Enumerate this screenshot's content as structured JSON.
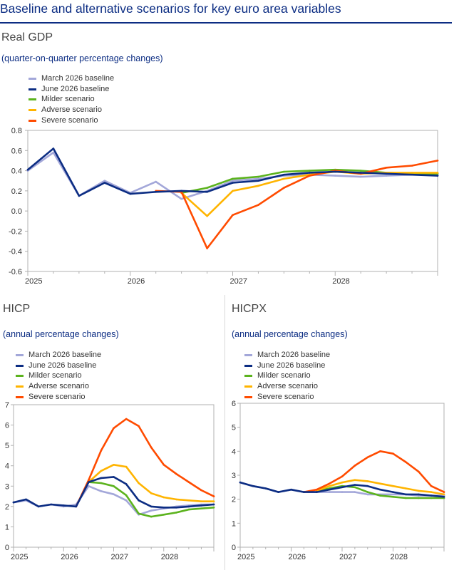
{
  "title": "Baseline and alternative scenarios for key euro area variables",
  "colors": {
    "march_baseline": "#a3a7d9",
    "june_baseline": "#0c2d83",
    "milder": "#5cb31e",
    "adverse": "#ffb400",
    "severe": "#ff4b00",
    "title_blue": "#0c2d83",
    "axis": "#b0b0b0"
  },
  "chart_data": [
    {
      "type": "line",
      "panel_title": "Real GDP",
      "subtitle": "(quarter-on-quarter percentage changes)",
      "legend": [
        "March 2026 baseline",
        "June 2026 baseline",
        "Milder scenario",
        "Adverse scenario",
        "Severe scenario"
      ],
      "legend_placement": "top-left",
      "x_tick_labels": [
        "2025",
        "2026",
        "2027",
        "2028"
      ],
      "x_quarters": 16,
      "xlim": [
        0,
        16
      ],
      "ylim": [
        -0.6,
        0.8
      ],
      "y_ticks": [
        -0.6,
        -0.4,
        -0.2,
        0.0,
        0.2,
        0.4,
        0.6,
        0.8
      ],
      "y_tick_labels": [
        "-0.6",
        "-0.4",
        "-0.2",
        "0.0",
        "0.2",
        "0.4",
        "0.6",
        "0.8"
      ],
      "series": [
        {
          "name": "March 2026 baseline",
          "color_key": "march_baseline",
          "start": 0,
          "values": [
            0.4,
            0.58,
            0.15,
            0.3,
            0.18,
            0.29,
            0.12,
            0.2,
            0.3,
            0.32,
            0.35,
            0.36,
            0.35,
            0.34,
            0.35,
            0.36,
            0.36
          ]
        },
        {
          "name": "June 2026 baseline",
          "color_key": "june_baseline",
          "start": 0,
          "values": [
            0.41,
            0.62,
            0.15,
            0.28,
            0.17,
            0.19,
            0.2,
            0.19,
            0.28,
            0.3,
            0.36,
            0.38,
            0.39,
            0.38,
            0.37,
            0.36,
            0.35
          ]
        },
        {
          "name": "Milder scenario",
          "color_key": "milder",
          "start": 6,
          "values": [
            0.18,
            0.23,
            0.32,
            0.34,
            0.39,
            0.4,
            0.41,
            0.4,
            0.38,
            0.37,
            0.37
          ]
        },
        {
          "name": "Adverse scenario",
          "color_key": "adverse",
          "start": 6,
          "values": [
            0.18,
            -0.05,
            0.2,
            0.25,
            0.32,
            0.36,
            0.39,
            0.37,
            0.38,
            0.38,
            0.38
          ]
        },
        {
          "name": "Severe scenario",
          "color_key": "severe",
          "start": 5,
          "values": [
            0.2,
            0.19,
            -0.37,
            -0.04,
            0.06,
            0.23,
            0.35,
            0.4,
            0.37,
            0.43,
            0.45,
            0.5
          ]
        }
      ]
    },
    {
      "type": "line",
      "panel_title": "HICP",
      "subtitle": "(annual percentage changes)",
      "legend": [
        "March 2026 baseline",
        "June 2026 baseline",
        "Milder scenario",
        "Adverse scenario",
        "Severe scenario"
      ],
      "legend_placement": "top-left",
      "x_tick_labels": [
        "2025",
        "2026",
        "2027",
        "2028"
      ],
      "x_quarters": 16,
      "xlim": [
        0,
        16
      ],
      "ylim": [
        0,
        7
      ],
      "y_ticks": [
        0,
        1,
        2,
        3,
        4,
        5,
        6,
        7
      ],
      "y_tick_labels": [
        "0",
        "1",
        "2",
        "3",
        "4",
        "5",
        "6",
        "7"
      ],
      "series": [
        {
          "name": "March 2026 baseline",
          "color_key": "march_baseline",
          "start": 0,
          "values": [
            2.2,
            2.3,
            2.0,
            2.1,
            2.0,
            2.1,
            3.0,
            2.75,
            2.6,
            2.3,
            1.6,
            1.8,
            1.9,
            2.0,
            2.05,
            2.1,
            2.1
          ]
        },
        {
          "name": "June 2026 baseline",
          "color_key": "june_baseline",
          "start": 0,
          "values": [
            2.2,
            2.35,
            2.0,
            2.1,
            2.05,
            2.0,
            3.2,
            3.4,
            3.45,
            3.1,
            2.3,
            2.0,
            1.95,
            1.95,
            2.0,
            2.05,
            2.1
          ]
        },
        {
          "name": "Milder scenario",
          "color_key": "milder",
          "start": 6,
          "values": [
            3.2,
            3.15,
            3.0,
            2.55,
            1.65,
            1.5,
            1.6,
            1.7,
            1.85,
            1.9,
            1.95
          ]
        },
        {
          "name": "Adverse scenario",
          "color_key": "adverse",
          "start": 6,
          "values": [
            3.2,
            3.75,
            4.05,
            3.95,
            3.15,
            2.65,
            2.45,
            2.35,
            2.3,
            2.25,
            2.25
          ]
        },
        {
          "name": "Severe scenario",
          "color_key": "severe",
          "start": 5,
          "values": [
            2.0,
            3.3,
            4.75,
            5.85,
            6.3,
            5.95,
            4.9,
            4.05,
            3.6,
            3.2,
            2.8,
            2.5
          ]
        }
      ]
    },
    {
      "type": "line",
      "panel_title": "HICPX",
      "subtitle": "(annual percentage changes)",
      "legend": [
        "March 2026 baseline",
        "June 2026 baseline",
        "Milder scenario",
        "Adverse scenario",
        "Severe scenario"
      ],
      "legend_placement": "top-left",
      "x_tick_labels": [
        "2025",
        "2026",
        "2027",
        "2028"
      ],
      "x_quarters": 16,
      "xlim": [
        0,
        16
      ],
      "ylim": [
        0,
        6
      ],
      "y_ticks": [
        0,
        1,
        2,
        3,
        4,
        5,
        6
      ],
      "y_tick_labels": [
        "0",
        "1",
        "2",
        "3",
        "4",
        "5",
        "6"
      ],
      "series": [
        {
          "name": "March 2026 baseline",
          "color_key": "march_baseline",
          "start": 0,
          "values": [
            2.7,
            2.55,
            2.45,
            2.3,
            2.4,
            2.3,
            2.3,
            2.3,
            2.3,
            2.3,
            2.2,
            2.2,
            2.2,
            2.2,
            2.15,
            2.15,
            2.15
          ]
        },
        {
          "name": "June 2026 baseline",
          "color_key": "june_baseline",
          "start": 0,
          "values": [
            2.7,
            2.55,
            2.45,
            2.3,
            2.4,
            2.3,
            2.3,
            2.4,
            2.5,
            2.6,
            2.55,
            2.4,
            2.3,
            2.2,
            2.2,
            2.15,
            2.1
          ]
        },
        {
          "name": "Milder scenario",
          "color_key": "milder",
          "start": 6,
          "values": [
            2.35,
            2.45,
            2.55,
            2.5,
            2.3,
            2.15,
            2.1,
            2.05,
            2.05,
            2.05,
            2.05
          ]
        },
        {
          "name": "Adverse scenario",
          "color_key": "adverse",
          "start": 6,
          "values": [
            2.35,
            2.55,
            2.7,
            2.8,
            2.75,
            2.65,
            2.55,
            2.45,
            2.35,
            2.3,
            2.2
          ]
        },
        {
          "name": "Severe scenario",
          "color_key": "severe",
          "start": 5,
          "values": [
            2.3,
            2.4,
            2.65,
            2.95,
            3.4,
            3.75,
            4.0,
            3.9,
            3.55,
            3.15,
            2.55,
            2.3
          ]
        }
      ]
    }
  ]
}
